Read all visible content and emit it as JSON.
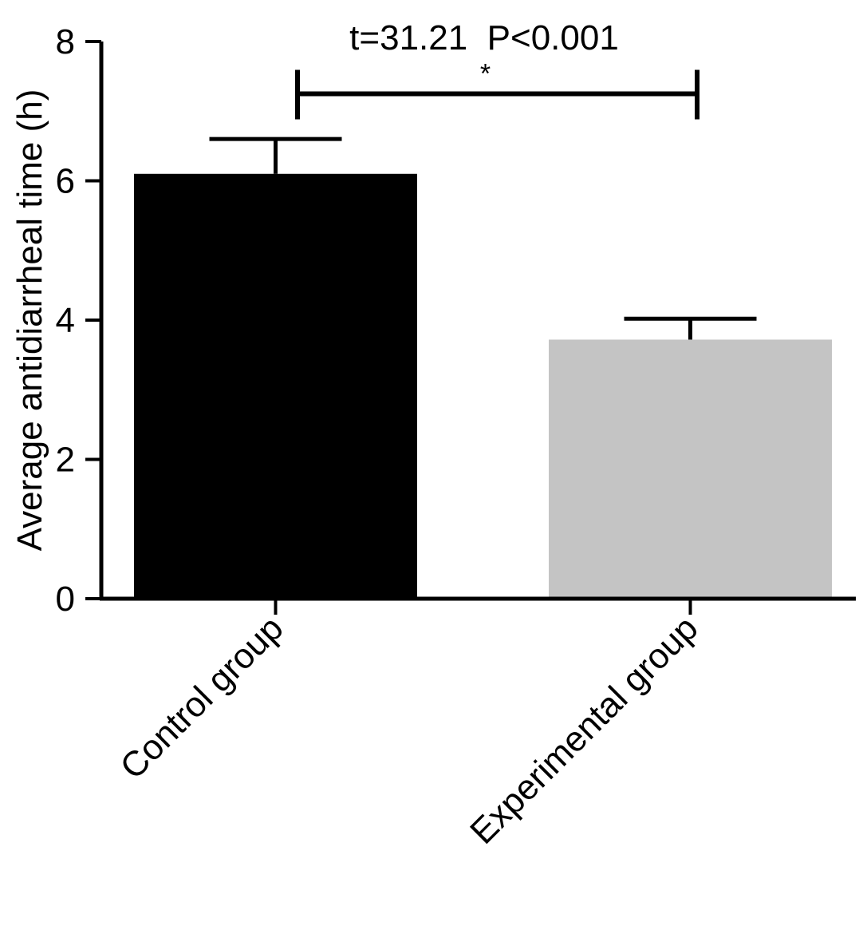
{
  "chart_data": {
    "type": "bar",
    "title": "",
    "xlabel": "",
    "ylabel": "Average antidiarrheal time (h)",
    "categories": [
      "Control group",
      "Experimental group"
    ],
    "values": [
      6.1,
      3.72
    ],
    "error_bars": [
      0.5,
      0.3
    ],
    "bar_colors": [
      "#000000",
      "#c4c4c4"
    ],
    "ylim": [
      0,
      8
    ],
    "yticks": [
      0,
      2,
      4,
      6,
      8
    ],
    "ytick_labels": [
      "0",
      "2",
      "4",
      "6",
      "8"
    ],
    "grid": false,
    "legend": "none",
    "annotations": {
      "statistic": "t=31.21  P<0.001",
      "significance": "*",
      "bracket_y": 7.25
    }
  }
}
